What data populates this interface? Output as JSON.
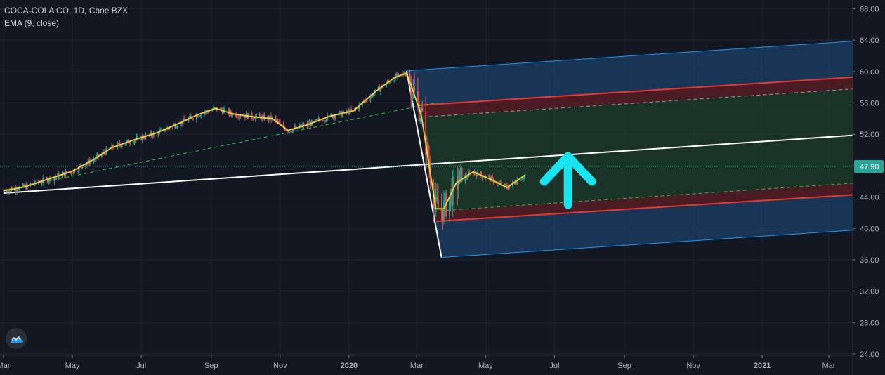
{
  "legend": {
    "title": "COCA-COLA CO, 1D, Cboe BZX",
    "indicator": "EMA (9, close)"
  },
  "chart_data": {
    "type": "candlestick",
    "title": "COCA-COLA CO, 1D, Cboe BZX",
    "indicator": "EMA (9, close)",
    "ylim": [
      23,
      69
    ],
    "y_ticks": [
      24,
      28,
      32,
      36,
      40,
      44,
      48,
      52,
      56,
      60,
      64,
      68
    ],
    "y_tick_labels": [
      "24.00",
      "28.00",
      "32.00",
      "36.00",
      "40.00",
      "44.00",
      "48.00",
      "52.00",
      "56.00",
      "60.00",
      "64.00",
      "68.00"
    ],
    "x_ticks": [
      {
        "label": "Mar",
        "date": "2019-03-01"
      },
      {
        "label": "May",
        "date": "2019-05-01"
      },
      {
        "label": "Jul",
        "date": "2019-07-01"
      },
      {
        "label": "Sep",
        "date": "2019-09-01"
      },
      {
        "label": "Nov",
        "date": "2019-11-01"
      },
      {
        "label": "2020",
        "date": "2020-01-01"
      },
      {
        "label": "Mar",
        "date": "2020-03-01"
      },
      {
        "label": "May",
        "date": "2020-05-01"
      },
      {
        "label": "Jul",
        "date": "2020-07-01"
      },
      {
        "label": "Sep",
        "date": "2020-09-01"
      },
      {
        "label": "Nov",
        "date": "2020-11-01"
      },
      {
        "label": "2021",
        "date": "2021-01-01"
      },
      {
        "label": "Mar",
        "date": "2021-03-01"
      }
    ],
    "last_price": 47.9,
    "last_price_label": "47.90",
    "price_series": {
      "name": "EMA (9, close)",
      "points": [
        [
          "2019-03-01",
          44.8
        ],
        [
          "2019-03-20",
          45.3
        ],
        [
          "2019-04-10",
          46.3
        ],
        [
          "2019-05-01",
          47.3
        ],
        [
          "2019-05-20",
          48.8
        ],
        [
          "2019-06-05",
          50.3
        ],
        [
          "2019-06-25",
          51.3
        ],
        [
          "2019-07-15",
          52.2
        ],
        [
          "2019-08-05",
          53.5
        ],
        [
          "2019-08-20",
          54.5
        ],
        [
          "2019-09-05",
          55.3
        ],
        [
          "2019-09-20",
          54.6
        ],
        [
          "2019-10-10",
          54.2
        ],
        [
          "2019-10-25",
          54.0
        ],
        [
          "2019-11-08",
          52.5
        ],
        [
          "2019-11-25",
          53.2
        ],
        [
          "2019-12-15",
          54.3
        ],
        [
          "2020-01-05",
          55.0
        ],
        [
          "2020-01-25",
          57.5
        ],
        [
          "2020-02-10",
          59.2
        ],
        [
          "2020-02-21",
          59.8
        ],
        [
          "2020-02-28",
          57.0
        ],
        [
          "2020-03-05",
          54.5
        ],
        [
          "2020-03-12",
          48.0
        ],
        [
          "2020-03-18",
          42.5
        ],
        [
          "2020-03-25",
          42.5
        ],
        [
          "2020-04-05",
          45.8
        ],
        [
          "2020-04-20",
          47.2
        ],
        [
          "2020-05-05",
          46.3
        ],
        [
          "2020-05-20",
          45.2
        ],
        [
          "2020-06-05",
          46.8
        ]
      ]
    },
    "pitchfork": {
      "pivot_start": {
        "date": "2019-03-01",
        "price": 44.5
      },
      "pivot_high": {
        "date": "2020-02-21",
        "price": 60.1
      },
      "pivot_low": {
        "date": "2020-03-23",
        "price": 36.3
      },
      "levels": [
        {
          "name": "outer-top",
          "start": {
            "date": "2020-02-21",
            "price": 60.1
          },
          "end": {
            "date": "2021-04-15",
            "price": 64.1
          },
          "color": "#2196f3"
        },
        {
          "name": "inner-top",
          "start": {
            "date": "2020-03-03",
            "price": 55.7
          },
          "end": {
            "date": "2021-04-15",
            "price": 59.5
          },
          "color": "#e53935"
        },
        {
          "name": "inner-top-dashed",
          "start": {
            "date": "2020-03-06",
            "price": 54.2
          },
          "end": {
            "date": "2021-04-15",
            "price": 58.0
          },
          "color": "#9e9e9e",
          "dashed": true
        },
        {
          "name": "median",
          "start": {
            "date": "2019-03-01",
            "price": 44.5
          },
          "end": {
            "date": "2021-04-15",
            "price": 52.1
          },
          "color": "#ffffff"
        },
        {
          "name": "inner-bottom-dashed",
          "start": {
            "date": "2020-03-16",
            "price": 42.2
          },
          "end": {
            "date": "2021-04-15",
            "price": 46.0
          },
          "color": "#4caf50",
          "dashed": true
        },
        {
          "name": "inner-bottom",
          "start": {
            "date": "2020-03-18",
            "price": 40.9
          },
          "end": {
            "date": "2021-04-15",
            "price": 44.5
          },
          "color": "#e53935"
        },
        {
          "name": "outer-bottom",
          "start": {
            "date": "2020-03-23",
            "price": 36.3
          },
          "end": {
            "date": "2021-04-15",
            "price": 40.0
          },
          "color": "#2196f3"
        }
      ],
      "trend_dashed": {
        "start": {
          "date": "2019-03-01",
          "price": 44.9
        },
        "end": {
          "date": "2020-03-17",
          "price": 56.0
        },
        "color": "#3fbf3f"
      }
    },
    "annotation": {
      "type": "arrow-up",
      "color": "#18e3f0",
      "date": "2020-07-13",
      "price_bottom": 43.0,
      "price_top": 49.2
    }
  }
}
